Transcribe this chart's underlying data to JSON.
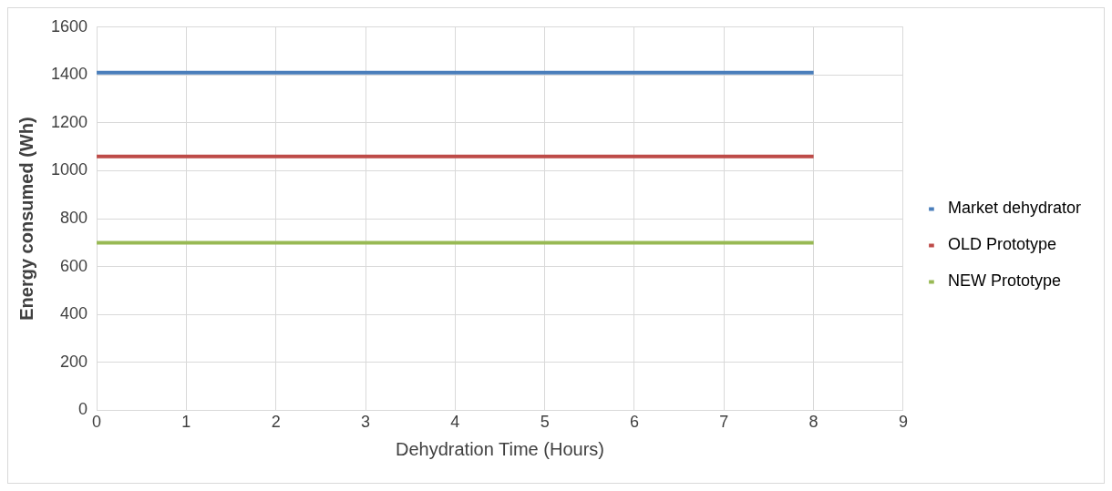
{
  "chart_data": {
    "type": "line",
    "xlabel": "Dehydration Time (Hours)",
    "ylabel": "Energy consumed (Wh)",
    "x": [
      0,
      8
    ],
    "series": [
      {
        "name": "Market dehydrator",
        "color": "#4a7ebb",
        "values": [
          1410,
          1410
        ]
      },
      {
        "name": "OLD Prototype",
        "color": "#be4b48",
        "values": [
          1060,
          1060
        ]
      },
      {
        "name": "NEW Prototype",
        "color": "#98b954",
        "values": [
          700,
          700
        ]
      }
    ],
    "xlim": [
      0,
      9
    ],
    "xticks": [
      0,
      1,
      2,
      3,
      4,
      5,
      6,
      7,
      8,
      9
    ],
    "ylim": [
      0,
      1600
    ],
    "yticks": [
      0,
      200,
      400,
      600,
      800,
      1000,
      1200,
      1400,
      1600
    ],
    "grid": true,
    "legend": "right",
    "marker": "none",
    "line_style": "solid"
  }
}
